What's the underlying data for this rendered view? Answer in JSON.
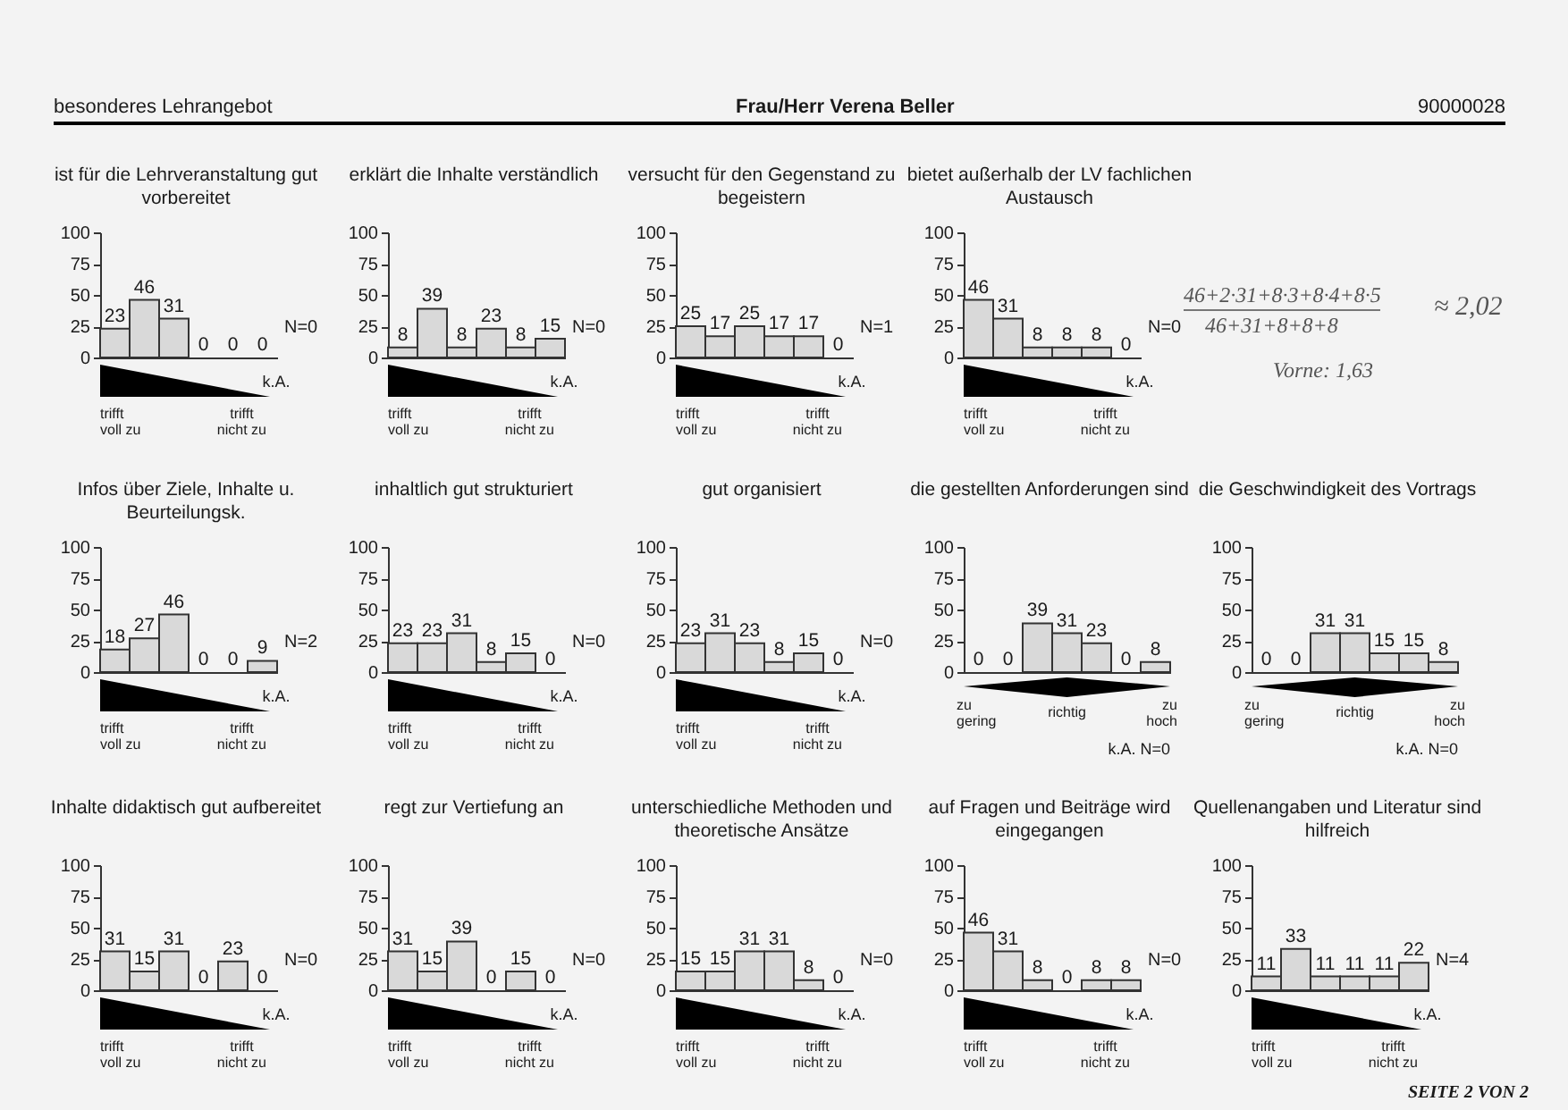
{
  "chart_data": [
    {
      "type": "other",
      "annotations": [
        "besonderes Lehrangebot",
        "Frau/Herr Verena Beller",
        "90000028",
        "SEITE 2 VON 2"
      ]
    },
    {
      "type": "bar",
      "title": "ist für die Lehrveranstaltung gut vorbereitet",
      "categories": [
        null,
        null,
        null,
        null,
        null,
        "k.A."
      ],
      "values": [
        23,
        46,
        31,
        0,
        0,
        0
      ],
      "color": "#d9d9d9",
      "ylim": [
        0,
        100
      ],
      "yticks": [
        0,
        25,
        50,
        75,
        100
      ],
      "data_labels": true,
      "annotations": [
        "N=0",
        "trifft voll zu",
        "trifft nicht zu"
      ]
    },
    {
      "type": "bar",
      "title": "erklärt die Inhalte verständlich",
      "categories": [
        null,
        null,
        null,
        null,
        null,
        "k.A."
      ],
      "values": [
        8,
        39,
        8,
        23,
        8,
        15
      ],
      "color": "#d9d9d9",
      "ylim": [
        0,
        100
      ],
      "yticks": [
        0,
        25,
        50,
        75,
        100
      ],
      "data_labels": true,
      "annotations": [
        "N=0",
        "trifft voll zu",
        "trifft nicht zu"
      ]
    },
    {
      "type": "bar",
      "title": "versucht für den Gegenstand zu begeistern",
      "categories": [
        null,
        null,
        null,
        null,
        null,
        "k.A."
      ],
      "values": [
        25,
        17,
        25,
        17,
        17,
        0
      ],
      "color": "#d9d9d9",
      "ylim": [
        0,
        100
      ],
      "yticks": [
        0,
        25,
        50,
        75,
        100
      ],
      "data_labels": true,
      "annotations": [
        "N=1",
        "trifft voll zu",
        "trifft nicht zu"
      ]
    },
    {
      "type": "bar",
      "title": "bietet außerhalb der LV fachlichen Austausch",
      "categories": [
        null,
        null,
        null,
        null,
        null,
        "k.A."
      ],
      "values": [
        46,
        31,
        8,
        8,
        8,
        0
      ],
      "color": "#d9d9d9",
      "ylim": [
        0,
        100
      ],
      "yticks": [
        0,
        25,
        50,
        75,
        100
      ],
      "data_labels": true,
      "annotations": [
        "N=0",
        "trifft voll zu",
        "trifft nicht zu"
      ]
    },
    {
      "type": "other",
      "annotations": [
        "46+2·31+8·3+8·4+8·5",
        "46+31+8+8+8",
        "≈ 2,02",
        "Vorne: 1,63"
      ]
    },
    {
      "type": "bar",
      "title": "Infos über Ziele, Inhalte u. Beurteilungsk.",
      "categories": [
        null,
        null,
        null,
        null,
        null,
        "k.A."
      ],
      "values": [
        18,
        27,
        46,
        0,
        0,
        9
      ],
      "color": "#d9d9d9",
      "ylim": [
        0,
        100
      ],
      "yticks": [
        0,
        25,
        50,
        75,
        100
      ],
      "data_labels": true,
      "annotations": [
        "N=2",
        "trifft voll zu",
        "trifft nicht zu"
      ]
    },
    {
      "type": "bar",
      "title": "inhaltlich gut strukturiert",
      "categories": [
        null,
        null,
        null,
        null,
        null,
        "k.A."
      ],
      "values": [
        23,
        23,
        31,
        8,
        15,
        0
      ],
      "color": "#d9d9d9",
      "ylim": [
        0,
        100
      ],
      "yticks": [
        0,
        25,
        50,
        75,
        100
      ],
      "data_labels": true,
      "annotations": [
        "N=0",
        "trifft voll zu",
        "trifft nicht zu"
      ]
    },
    {
      "type": "bar",
      "title": "gut organisiert",
      "categories": [
        null,
        null,
        null,
        null,
        null,
        "k.A."
      ],
      "values": [
        23,
        31,
        23,
        8,
        15,
        0
      ],
      "color": "#d9d9d9",
      "ylim": [
        0,
        100
      ],
      "yticks": [
        0,
        25,
        50,
        75,
        100
      ],
      "data_labels": true,
      "annotations": [
        "N=0",
        "trifft voll zu",
        "trifft nicht zu"
      ]
    },
    {
      "type": "bar",
      "title": "die gestellten Anforderungen sind",
      "categories": [
        null,
        null,
        null,
        null,
        null,
        null,
        null
      ],
      "values": [
        0,
        0,
        39,
        31,
        23,
        0,
        8
      ],
      "color": "#d9d9d9",
      "ylim": [
        0,
        100
      ],
      "yticks": [
        0,
        25,
        50,
        75,
        100
      ],
      "data_labels": true,
      "annotations": [
        "zu gering",
        "richtig",
        "zu hoch",
        "k.A. N=0"
      ]
    },
    {
      "type": "bar",
      "title": "die Geschwindigkeit des Vortrags",
      "categories": [
        null,
        null,
        null,
        null,
        null,
        null,
        null
      ],
      "values": [
        0,
        0,
        31,
        31,
        15,
        15,
        8
      ],
      "color": "#d9d9d9",
      "ylim": [
        0,
        100
      ],
      "yticks": [
        0,
        25,
        50,
        75,
        100
      ],
      "data_labels": true,
      "annotations": [
        "zu gering",
        "richtig",
        "zu hoch",
        "k.A. N=0"
      ]
    },
    {
      "type": "bar",
      "title": "Inhalte didaktisch gut aufbereitet",
      "categories": [
        null,
        null,
        null,
        null,
        null,
        "k.A."
      ],
      "values": [
        31,
        15,
        31,
        0,
        23,
        0
      ],
      "color": "#d9d9d9",
      "ylim": [
        0,
        100
      ],
      "yticks": [
        0,
        25,
        50,
        75,
        100
      ],
      "data_labels": true,
      "annotations": [
        "N=0",
        "trifft voll zu",
        "trifft nicht zu"
      ]
    },
    {
      "type": "bar",
      "title": "regt zur Vertiefung an",
      "categories": [
        null,
        null,
        null,
        null,
        null,
        "k.A."
      ],
      "values": [
        31,
        15,
        39,
        0,
        15,
        0
      ],
      "color": "#d9d9d9",
      "ylim": [
        0,
        100
      ],
      "yticks": [
        0,
        25,
        50,
        75,
        100
      ],
      "data_labels": true,
      "annotations": [
        "N=0",
        "trifft voll zu",
        "trifft nicht zu"
      ]
    },
    {
      "type": "bar",
      "title": "unterschiedliche Methoden und theoretische Ansätze",
      "categories": [
        null,
        null,
        null,
        null,
        null,
        "k.A."
      ],
      "values": [
        15,
        15,
        31,
        31,
        8,
        0
      ],
      "color": "#d9d9d9",
      "ylim": [
        0,
        100
      ],
      "yticks": [
        0,
        25,
        50,
        75,
        100
      ],
      "data_labels": true,
      "annotations": [
        "N=0",
        "trifft voll zu",
        "trifft nicht zu"
      ]
    },
    {
      "type": "bar",
      "title": "auf Fragen und Beiträge wird eingegangen",
      "categories": [
        null,
        null,
        null,
        null,
        null,
        "k.A."
      ],
      "values": [
        46,
        31,
        8,
        0,
        8,
        8
      ],
      "color": "#d9d9d9",
      "ylim": [
        0,
        100
      ],
      "yticks": [
        0,
        25,
        50,
        75,
        100
      ],
      "data_labels": true,
      "annotations": [
        "N=0",
        "trifft voll zu",
        "trifft nicht zu"
      ]
    },
    {
      "type": "bar",
      "title": "Quellenangaben und Literatur sind hilfreich",
      "categories": [
        null,
        null,
        null,
        null,
        null,
        "k.A."
      ],
      "values": [
        11,
        33,
        11,
        11,
        11,
        22
      ],
      "color": "#d9d9d9",
      "ylim": [
        0,
        100
      ],
      "yticks": [
        0,
        25,
        50,
        75,
        100
      ],
      "data_labels": true,
      "annotations": [
        "N=4",
        "trifft voll zu",
        "trifft nicht zu"
      ]
    }
  ]
}
